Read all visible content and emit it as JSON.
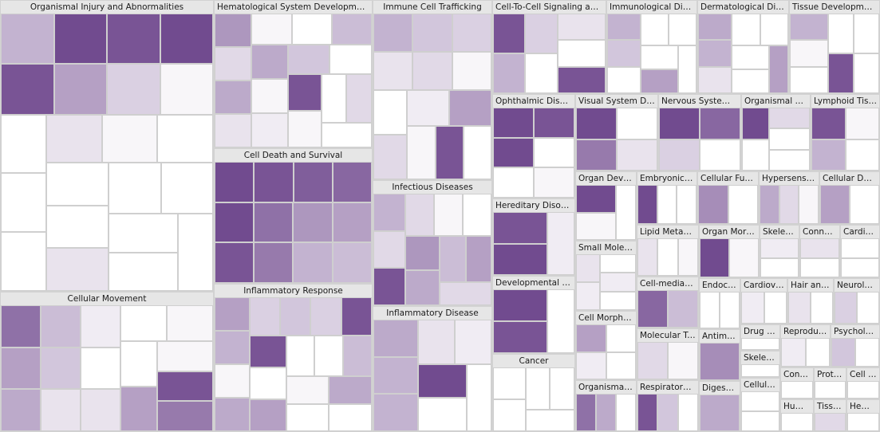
{
  "chart_data": {
    "type": "treemap",
    "title": "",
    "shade_scale": [
      "#ffffff",
      "#6a4189"
    ],
    "categories": [
      {
        "name": "Organismal Injury and Abnormalities",
        "size": 58,
        "shades": [
          0.4,
          0.95,
          0.9,
          0.95,
          0.9,
          0.5,
          0.25,
          0.05,
          0.0,
          0.0,
          0.0,
          0.15,
          0.05,
          0.0,
          0.0,
          0.0,
          0.15,
          0.0,
          0.0,
          0.0,
          0.0,
          0.0
        ]
      },
      {
        "name": "Cellular Movement",
        "size": 28,
        "shades": [
          0.75,
          0.5,
          0.45,
          0.35,
          0.3,
          0.15,
          0.1,
          0.0,
          0.15,
          0.0,
          0.05,
          0.0,
          0.5,
          0.05,
          0.9,
          0.7
        ]
      },
      {
        "name": "Hematological System Development and Function",
        "size": 22,
        "shades": [
          0.55,
          0.2,
          0.45,
          0.15,
          0.05,
          0.0,
          0.35,
          0.45,
          0.05,
          0.1,
          0.3,
          0.0,
          0.9,
          0.05,
          0.0,
          0.2,
          0.0
        ]
      },
      {
        "name": "Cell Death and Survival",
        "size": 20,
        "shades": [
          0.95,
          0.95,
          0.9,
          0.9,
          0.85,
          0.8,
          0.75,
          0.7,
          0.55,
          0.5,
          0.4,
          0.35
        ]
      },
      {
        "name": "Inflammatory Response",
        "size": 22,
        "shades": [
          0.5,
          0.4,
          0.05,
          0.45,
          0.25,
          0.3,
          0.25,
          0.9,
          0.9,
          0.0,
          0.5,
          0.0,
          0.0,
          0.35,
          0.05,
          0.0,
          0.45,
          0.0
        ]
      },
      {
        "name": "Immune Cell Trafficking",
        "size": 20,
        "shades": [
          0.4,
          0.3,
          0.25,
          0.15,
          0.2,
          0.05,
          0.0,
          0.2,
          0.1,
          0.5,
          0.05,
          0.9,
          0.0
        ]
      },
      {
        "name": "Infectious Diseases",
        "size": 14,
        "shades": [
          0.4,
          0.2,
          0.9,
          0.2,
          0.05,
          0.0,
          0.55,
          0.45,
          0.35,
          0.5,
          0.2
        ]
      },
      {
        "name": "Inflammatory Disease",
        "size": 14,
        "shades": [
          0.45,
          0.4,
          0.4,
          0.15,
          0.1,
          0.95,
          0.0,
          0.0
        ]
      },
      {
        "name": "Cell-To-Cell Signaling and Interaction",
        "size": 10,
        "shades": [
          0.9,
          0.4,
          0.25,
          0.0,
          0.15,
          0.0,
          0.9
        ]
      },
      {
        "name": "Immunological Disease",
        "size": 8,
        "shades": [
          0.4,
          0.3,
          0.0,
          0.0,
          0.0,
          0.0,
          0.5,
          0.0
        ]
      },
      {
        "name": "Dermatological Diseases and Conditions",
        "size": 8,
        "shades": [
          0.45,
          0.4,
          0.15,
          0.0,
          0.0,
          0.0,
          0.0,
          0.5
        ]
      },
      {
        "name": "Tissue Development",
        "size": 8,
        "shades": [
          0.4,
          0.05,
          0.0,
          0.0,
          0.0,
          0.9,
          0.0
        ]
      },
      {
        "name": "Ophthalmic Disease",
        "size": 8,
        "shades": [
          0.95,
          0.9,
          0.95,
          0.0,
          0.0,
          0.05
        ]
      },
      {
        "name": "Hereditary Disorder",
        "size": 6,
        "shades": [
          0.9,
          0.95,
          0.1
        ]
      },
      {
        "name": "Developmental Disorder",
        "size": 6,
        "shades": [
          0.95,
          0.9,
          0.0
        ]
      },
      {
        "name": "Cancer",
        "size": 6,
        "shades": [
          0.0,
          0.0,
          0.0,
          0.0,
          0.0
        ]
      },
      {
        "name": "Visual System Development and Function",
        "size": 6,
        "shades": [
          0.95,
          0.7,
          0.0,
          0.15
        ]
      },
      {
        "name": "Nervous System Development and Function",
        "size": 6,
        "shades": [
          0.95,
          0.25,
          0.8,
          0.0
        ]
      },
      {
        "name": "Organismal Development",
        "size": 5,
        "shades": [
          0.95,
          0.0,
          0.2,
          0.0,
          0.0
        ]
      },
      {
        "name": "Lymphoid Tissue Structure and Development",
        "size": 5,
        "shades": [
          0.9,
          0.4,
          0.05,
          0.0
        ]
      },
      {
        "name": "Organ Development",
        "size": 4,
        "shades": [
          0.95,
          0.05,
          0.0
        ]
      },
      {
        "name": "Small Molecule Biochemistry",
        "size": 4,
        "shades": [
          0.15,
          0.1,
          0.0,
          0.1,
          0.0
        ]
      },
      {
        "name": "Cell Morphology",
        "size": 4,
        "shades": [
          0.5,
          0.1,
          0.0,
          0.0
        ]
      },
      {
        "name": "Organismal Survival",
        "size": 3,
        "shades": [
          0.75,
          0.45,
          0.0
        ]
      },
      {
        "name": "Embryonic Development",
        "size": 3,
        "shades": [
          0.95,
          0.0,
          0.0
        ]
      },
      {
        "name": "Cellular Function and Maintenance",
        "size": 3,
        "shades": [
          0.6,
          0.0
        ]
      },
      {
        "name": "Hypersensitivity Response",
        "size": 3,
        "shades": [
          0.45,
          0.2,
          0.05
        ]
      },
      {
        "name": "Cellular Development",
        "size": 3,
        "shades": [
          0.5,
          0.0
        ]
      },
      {
        "name": "Lipid Metabolism",
        "size": 3,
        "shades": [
          0.15,
          0.0,
          0.05
        ]
      },
      {
        "name": "Cell-mediated Immune Response",
        "size": 3,
        "shades": [
          0.8,
          0.35
        ]
      },
      {
        "name": "Molecular Transport",
        "size": 3,
        "shades": [
          0.2,
          0.05
        ]
      },
      {
        "name": "Respiratory Disease",
        "size": 3,
        "shades": [
          0.9,
          0.3,
          0.0
        ]
      },
      {
        "name": "Organ Morphology",
        "size": 3,
        "shades": [
          0.95,
          0.05
        ]
      },
      {
        "name": "Skeletal and Muscular Disorders",
        "size": 2,
        "shades": [
          0.1,
          0.0
        ]
      },
      {
        "name": "Connective Tissue Disorders",
        "size": 2,
        "shades": [
          0.15,
          0.0
        ]
      },
      {
        "name": "Cardiovascular System Development and Function",
        "size": 2,
        "shades": [
          0.0,
          0.0
        ]
      },
      {
        "name": "Endocrine System Disorders",
        "size": 2,
        "shades": [
          0.0,
          0.0
        ]
      },
      {
        "name": "Antimicrobial Response",
        "size": 2,
        "shades": [
          0.6
        ]
      },
      {
        "name": "Digestive System Development and Function",
        "size": 2,
        "shades": [
          0.45
        ]
      },
      {
        "name": "Cardiovascular Disease",
        "size": 2,
        "shades": [
          0.1,
          0.0
        ]
      },
      {
        "name": "Hair and Skin Development and Function",
        "size": 2,
        "shades": [
          0.15,
          0.0
        ]
      },
      {
        "name": "Neurological Disease",
        "size": 2,
        "shades": [
          0.25,
          0.0
        ]
      },
      {
        "name": "Drug Metabolism",
        "size": 1,
        "shades": [
          0.0
        ]
      },
      {
        "name": "Skeletal and Muscular System Development and Function",
        "size": 1,
        "shades": [
          0.0
        ]
      },
      {
        "name": "Cellular Compromise",
        "size": 2,
        "shades": [
          0.0,
          0.0
        ]
      },
      {
        "name": "Reproductive System Disease",
        "size": 2,
        "shades": [
          0.1,
          0.0
        ]
      },
      {
        "name": "Psychological Disorders",
        "size": 2,
        "shades": [
          0.3,
          0.0
        ]
      },
      {
        "name": "Connective Tissue Development and Function",
        "size": 1,
        "shades": [
          0.0
        ]
      },
      {
        "name": "Humoral Immune Response",
        "size": 1,
        "shades": [
          0.0
        ]
      },
      {
        "name": "Protein Synthesis",
        "size": 1,
        "shades": [
          0.0
        ]
      },
      {
        "name": "Tissue Morphology",
        "size": 1,
        "shades": [
          0.2
        ]
      },
      {
        "name": "Cell Cycle",
        "size": 1,
        "shades": [
          0.0
        ]
      },
      {
        "name": "Hematopoiesis",
        "size": 1,
        "shades": [
          0.0
        ]
      }
    ]
  }
}
